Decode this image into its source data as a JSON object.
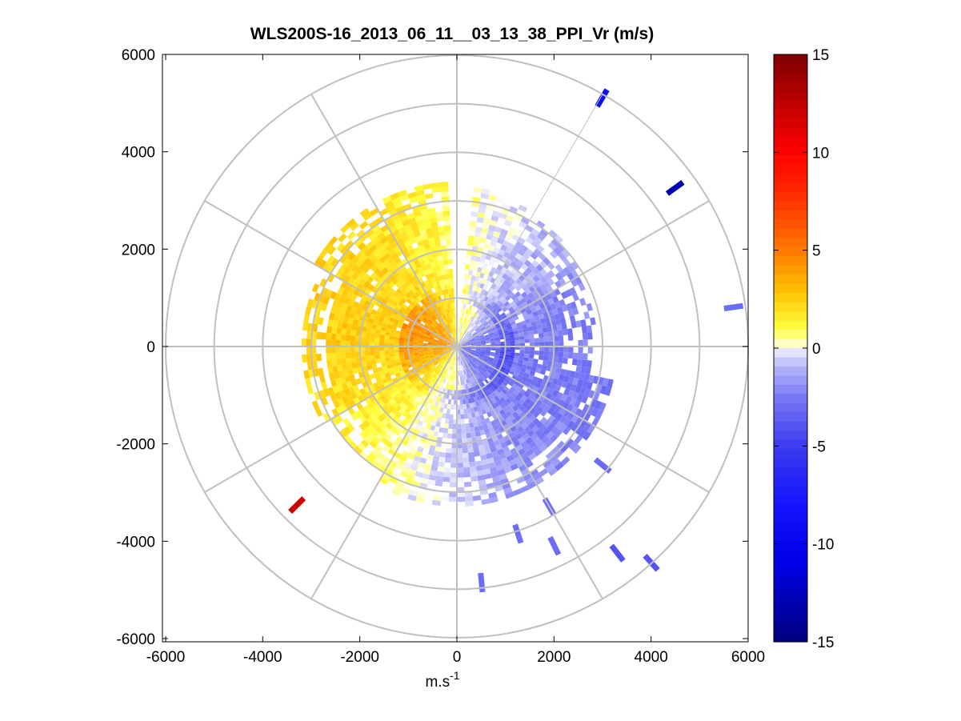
{
  "window": {
    "title": "WLS200S-16_2013_06_11__03_13_38_PPI_Vr (m/s)"
  },
  "chart_data": {
    "type": "heatmap",
    "subtype": "polar PPI scan",
    "title": "WLS200S-16_2013_06_11__03_13_38_PPI_Vr (m/s)",
    "xlabel_base": "m.s",
    "xlabel_exp": "-1",
    "ylabel": "",
    "xlim": [
      -6000,
      6000
    ],
    "ylim": [
      -6000,
      6000
    ],
    "x_ticks": [
      "-6000",
      "-4000",
      "-2000",
      "0",
      "2000",
      "4000",
      "6000"
    ],
    "y_ticks": [
      "6000",
      "4000",
      "2000",
      "0",
      "-2000",
      "-4000",
      "-6000"
    ],
    "x_tick_values": [
      -6000,
      -4000,
      -2000,
      0,
      2000,
      4000,
      6000
    ],
    "y_tick_values": [
      6000,
      4000,
      2000,
      0,
      -2000,
      -4000,
      -6000
    ],
    "polar_grid": {
      "ring_radii_m": [
        1000,
        2000,
        3000,
        4000,
        5000,
        6000
      ],
      "spoke_angles_deg": [
        0,
        30,
        60,
        90,
        120,
        150,
        180,
        210,
        240,
        270,
        300,
        330
      ],
      "grid": true
    },
    "colorbar": {
      "range": [
        -15,
        15
      ],
      "tick_labels": [
        "15",
        "10",
        "5",
        "0",
        "-5",
        "-10",
        "-15"
      ],
      "tick_values": [
        15,
        10,
        5,
        0,
        -5,
        -10,
        -15
      ],
      "colors": {
        "-15": "#00007f",
        "-10": "#0000ff",
        "-5": "#3c3cf5",
        "-1": "#b4b4fa",
        "0": "#ffffff",
        "1": "#ffff3c",
        "3": "#ffb400",
        "5": "#ff7800",
        "10": "#ff0000",
        "15": "#7f0000"
      }
    },
    "sectors": [
      {
        "name": "approaching-west",
        "az_from_deg": 180,
        "az_to_deg": 357,
        "r_from_m": 0,
        "r_to_m": 3400,
        "value_ms": 2,
        "core_value_ms": 4
      },
      {
        "name": "receding-east",
        "az_from_deg": 3,
        "az_to_deg": 180,
        "r_from_m": 0,
        "r_to_m": 3400,
        "value_ms": -2,
        "core_value_ms": -4
      },
      {
        "name": "outer-blue-south",
        "az_from_deg": 100,
        "az_to_deg": 205,
        "r_from_m": 3400,
        "r_to_m": 3500,
        "value_ms": -2
      }
    ],
    "isolated_returns": [
      {
        "x_m": 3000,
        "y_m": 5100,
        "value_ms": -9
      },
      {
        "x_m": 4500,
        "y_m": 3250,
        "value_ms": -13
      },
      {
        "x_m": 5700,
        "y_m": 800,
        "value_ms": -3
      },
      {
        "x_m": -3300,
        "y_m": -3250,
        "value_ms": 12
      },
      {
        "x_m": 4000,
        "y_m": -4450,
        "value_ms": -4
      },
      {
        "x_m": 3300,
        "y_m": -4250,
        "value_ms": -4
      },
      {
        "x_m": 2000,
        "y_m": -4100,
        "value_ms": -3
      },
      {
        "x_m": 1250,
        "y_m": -3850,
        "value_ms": -3
      },
      {
        "x_m": 500,
        "y_m": -4850,
        "value_ms": -3
      },
      {
        "x_m": 1900,
        "y_m": -3300,
        "value_ms": -3
      },
      {
        "x_m": 3000,
        "y_m": -2450,
        "value_ms": -3
      }
    ]
  }
}
